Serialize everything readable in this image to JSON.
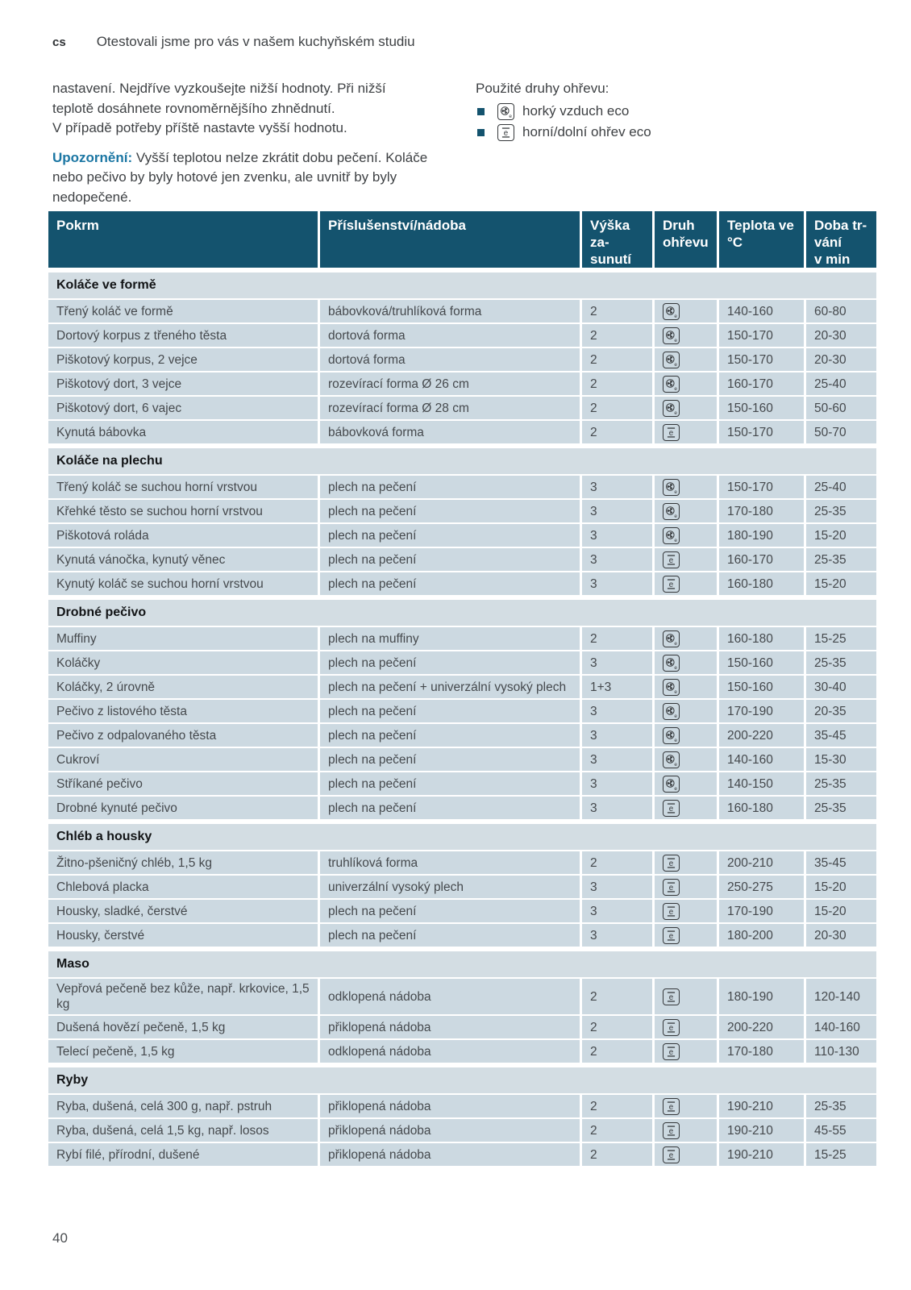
{
  "colors": {
    "table_header_bg": "#14536e",
    "data_row_bg": "#ccd9e1",
    "section_row_bg": "#d3dde3",
    "accent_blue": "#1b76a3",
    "bullet_blue": "#14536e"
  },
  "page": {
    "lang_tag": "cs",
    "header_title": "Otestovali jsme pro vás v našem kuchyňském studiu",
    "page_number": "40"
  },
  "intro": {
    "left_lines": [
      "nastavení. Nejdříve vyzkoušejte nižší hodnoty. Při nižší",
      "teplotě dosáhnete rovnoměrnějšího zhnědnutí.",
      "V případě potřeby příště nastavte vyšší hodnotu."
    ],
    "note_label": "Upozornění:",
    "note_text": " Vyšší teplotou nelze zkrátit dobu pečení. Koláče nebo pečivo by byly hotové jen zvenku, ale uvnitř by byly nedopečené."
  },
  "heating_types": {
    "title": "Použité druhy ohřevu:",
    "items": [
      {
        "icon": "hot-air-eco",
        "label": "horký vzduch eco"
      },
      {
        "icon": "top-bottom-eco",
        "label": "horní/dolní ohřev eco"
      }
    ]
  },
  "table": {
    "columns": [
      "Pokrm",
      "Příslušenství/nádoba",
      "Výška za-\nsunutí",
      "Druh\nohřevu",
      "Teplota ve\n°C",
      "Doba tr-\nvání\nv min"
    ],
    "sections": [
      {
        "title": "Koláče ve formě",
        "rows": [
          {
            "food": "Třený koláč ve formě",
            "accessory": "bábovková/truhlíková forma",
            "level": "2",
            "mode": "hot-air-eco",
            "temp": "140-160",
            "time": "60-80"
          },
          {
            "food": "Dortový korpus z třeného těsta",
            "accessory": "dortová forma",
            "level": "2",
            "mode": "hot-air-eco",
            "temp": "150-170",
            "time": "20-30"
          },
          {
            "food": "Piškotový korpus, 2 vejce",
            "accessory": "dortová forma",
            "level": "2",
            "mode": "hot-air-eco",
            "temp": "150-170",
            "time": "20-30"
          },
          {
            "food": "Piškotový dort, 3 vejce",
            "accessory": "rozevírací forma Ø 26 cm",
            "level": "2",
            "mode": "hot-air-eco",
            "temp": "160-170",
            "time": "25-40"
          },
          {
            "food": "Piškotový dort, 6 vajec",
            "accessory": "rozevírací forma Ø 28 cm",
            "level": "2",
            "mode": "hot-air-eco",
            "temp": "150-160",
            "time": "50-60"
          },
          {
            "food": "Kynutá bábovka",
            "accessory": "bábovková forma",
            "level": "2",
            "mode": "top-bottom-eco",
            "temp": "150-170",
            "time": "50-70"
          }
        ]
      },
      {
        "title": "Koláče na plechu",
        "rows": [
          {
            "food": "Třený koláč se suchou horní vrstvou",
            "accessory": "plech na pečení",
            "level": "3",
            "mode": "hot-air-eco",
            "temp": "150-170",
            "time": "25-40"
          },
          {
            "food": "Křehké těsto se suchou horní vrstvou",
            "accessory": "plech na pečení",
            "level": "3",
            "mode": "hot-air-eco",
            "temp": "170-180",
            "time": "25-35"
          },
          {
            "food": "Piškotová roláda",
            "accessory": "plech na pečení",
            "level": "3",
            "mode": "hot-air-eco",
            "temp": "180-190",
            "time": "15-20"
          },
          {
            "food": "Kynutá vánočka, kynutý věnec",
            "accessory": "plech na pečení",
            "level": "3",
            "mode": "top-bottom-eco",
            "temp": "160-170",
            "time": "25-35"
          },
          {
            "food": "Kynutý koláč se suchou horní vrstvou",
            "accessory": "plech na pečení",
            "level": "3",
            "mode": "top-bottom-eco",
            "temp": "160-180",
            "time": "15-20"
          }
        ]
      },
      {
        "title": "Drobné pečivo",
        "rows": [
          {
            "food": "Muffiny",
            "accessory": "plech na muffiny",
            "level": "2",
            "mode": "hot-air-eco",
            "temp": "160-180",
            "time": "15-25"
          },
          {
            "food": "Koláčky",
            "accessory": "plech na pečení",
            "level": "3",
            "mode": "hot-air-eco",
            "temp": "150-160",
            "time": "25-35"
          },
          {
            "food": "Koláčky, 2 úrovně",
            "accessory": "plech na pečení + univerzální vysoký plech",
            "level": "1+3",
            "mode": "hot-air-eco",
            "temp": "150-160",
            "time": "30-40"
          },
          {
            "food": "Pečivo z listového těsta",
            "accessory": "plech na pečení",
            "level": "3",
            "mode": "hot-air-eco",
            "temp": "170-190",
            "time": "20-35"
          },
          {
            "food": "Pečivo z odpalovaného těsta",
            "accessory": "plech na pečení",
            "level": "3",
            "mode": "hot-air-eco",
            "temp": "200-220",
            "time": "35-45"
          },
          {
            "food": "Cukroví",
            "accessory": "plech na pečení",
            "level": "3",
            "mode": "hot-air-eco",
            "temp": "140-160",
            "time": "15-30"
          },
          {
            "food": "Stříkané pečivo",
            "accessory": "plech na pečení",
            "level": "3",
            "mode": "hot-air-eco",
            "temp": "140-150",
            "time": "25-35"
          },
          {
            "food": "Drobné kynuté pečivo",
            "accessory": "plech na pečení",
            "level": "3",
            "mode": "top-bottom-eco",
            "temp": "160-180",
            "time": "25-35"
          }
        ]
      },
      {
        "title": "Chléb a housky",
        "rows": [
          {
            "food": "Žitno-pšeničný chléb, 1,5 kg",
            "accessory": "truhlíková forma",
            "level": "2",
            "mode": "top-bottom-eco",
            "temp": "200-210",
            "time": "35-45"
          },
          {
            "food": "Chlebová placka",
            "accessory": "univerzální vysoký plech",
            "level": "3",
            "mode": "top-bottom-eco",
            "temp": "250-275",
            "time": "15-20"
          },
          {
            "food": "Housky, sladké, čerstvé",
            "accessory": "plech na pečení",
            "level": "3",
            "mode": "top-bottom-eco",
            "temp": "170-190",
            "time": "15-20"
          },
          {
            "food": "Housky, čerstvé",
            "accessory": "plech na pečení",
            "level": "3",
            "mode": "top-bottom-eco",
            "temp": "180-200",
            "time": "20-30"
          }
        ]
      },
      {
        "title": "Maso",
        "rows": [
          {
            "food": "Vepřová pečeně bez kůže, např. krkovice, 1,5 kg",
            "accessory": "odklopená nádoba",
            "level": "2",
            "mode": "top-bottom-eco",
            "temp": "180-190",
            "time": "120-140"
          },
          {
            "food": "Dušená hovězí pečeně, 1,5 kg",
            "accessory": "přiklopená nádoba",
            "level": "2",
            "mode": "top-bottom-eco",
            "temp": "200-220",
            "time": "140-160"
          },
          {
            "food": "Telecí pečeně, 1,5 kg",
            "accessory": "odklopená nádoba",
            "level": "2",
            "mode": "top-bottom-eco",
            "temp": "170-180",
            "time": "110-130"
          }
        ]
      },
      {
        "title": "Ryby",
        "rows": [
          {
            "food": "Ryba, dušená, celá 300 g, např. pstruh",
            "accessory": "přiklopená nádoba",
            "level": "2",
            "mode": "top-bottom-eco",
            "temp": "190-210",
            "time": "25-35"
          },
          {
            "food": "Ryba, dušená, celá 1,5 kg, např. losos",
            "accessory": "přiklopená nádoba",
            "level": "2",
            "mode": "top-bottom-eco",
            "temp": "190-210",
            "time": "45-55"
          },
          {
            "food": "Rybí filé, přírodní, dušené",
            "accessory": "přiklopená nádoba",
            "level": "2",
            "mode": "top-bottom-eco",
            "temp": "190-210",
            "time": "15-25"
          }
        ]
      }
    ]
  }
}
